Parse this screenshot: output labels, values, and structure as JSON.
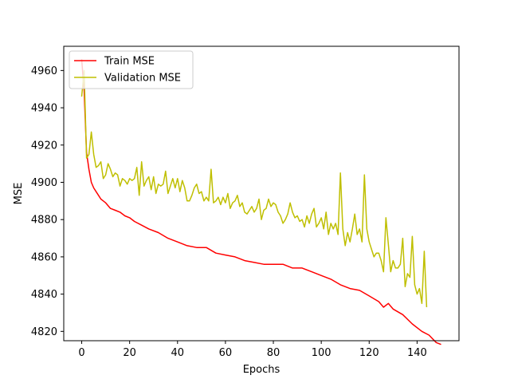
{
  "chart_data": {
    "type": "line",
    "title": "",
    "xlabel": "Epochs",
    "ylabel": "MSE",
    "xlim": [
      -7.5,
      157.5
    ],
    "ylim": [
      4815,
      4973
    ],
    "xticks": [
      0,
      20,
      40,
      60,
      80,
      100,
      120,
      140
    ],
    "yticks": [
      4820,
      4840,
      4860,
      4880,
      4900,
      4920,
      4940,
      4960
    ],
    "grid": false,
    "legend": "top-left",
    "series": [
      {
        "name": "Train MSE",
        "color": "#ff0000",
        "points": [
          [
            0,
            4966
          ],
          [
            1,
            4949
          ],
          [
            2,
            4916
          ],
          [
            3,
            4907
          ],
          [
            4,
            4900
          ],
          [
            5,
            4897
          ],
          [
            6,
            4895
          ],
          [
            7,
            4893
          ],
          [
            8,
            4891
          ],
          [
            9,
            4890
          ],
          [
            10,
            4889
          ],
          [
            12,
            4886
          ],
          [
            14,
            4885
          ],
          [
            16,
            4884
          ],
          [
            18,
            4882
          ],
          [
            20,
            4881
          ],
          [
            22,
            4879
          ],
          [
            25,
            4877
          ],
          [
            28,
            4875
          ],
          [
            32,
            4873
          ],
          [
            36,
            4870
          ],
          [
            40,
            4868
          ],
          [
            44,
            4866
          ],
          [
            48,
            4865
          ],
          [
            52,
            4865
          ],
          [
            56,
            4862
          ],
          [
            60,
            4861
          ],
          [
            64,
            4860
          ],
          [
            68,
            4858
          ],
          [
            72,
            4857
          ],
          [
            76,
            4856
          ],
          [
            80,
            4856
          ],
          [
            84,
            4856
          ],
          [
            86,
            4855
          ],
          [
            88,
            4854
          ],
          [
            92,
            4854
          ],
          [
            96,
            4852
          ],
          [
            100,
            4850
          ],
          [
            104,
            4848
          ],
          [
            108,
            4845
          ],
          [
            112,
            4843
          ],
          [
            116,
            4842
          ],
          [
            120,
            4839
          ],
          [
            124,
            4836
          ],
          [
            126,
            4833
          ],
          [
            128,
            4835
          ],
          [
            130,
            4832
          ],
          [
            134,
            4829
          ],
          [
            138,
            4824
          ],
          [
            142,
            4820
          ],
          [
            145,
            4818
          ],
          [
            148,
            4814
          ],
          [
            150,
            4813
          ]
        ]
      },
      {
        "name": "Validation MSE",
        "color": "#bfbf00",
        "points": [
          [
            0,
            4946
          ],
          [
            1,
            4960
          ],
          [
            2,
            4913
          ],
          [
            3,
            4915
          ],
          [
            4,
            4927
          ],
          [
            5,
            4915
          ],
          [
            6,
            4908
          ],
          [
            7,
            4909
          ],
          [
            8,
            4911
          ],
          [
            9,
            4902
          ],
          [
            10,
            4904
          ],
          [
            11,
            4910
          ],
          [
            12,
            4907
          ],
          [
            13,
            4903
          ],
          [
            14,
            4905
          ],
          [
            15,
            4904
          ],
          [
            16,
            4898
          ],
          [
            17,
            4902
          ],
          [
            18,
            4901
          ],
          [
            19,
            4899
          ],
          [
            20,
            4902
          ],
          [
            21,
            4901
          ],
          [
            22,
            4902
          ],
          [
            23,
            4908
          ],
          [
            24,
            4893
          ],
          [
            25,
            4911
          ],
          [
            26,
            4898
          ],
          [
            27,
            4901
          ],
          [
            28,
            4903
          ],
          [
            29,
            4896
          ],
          [
            30,
            4903
          ],
          [
            31,
            4894
          ],
          [
            32,
            4899
          ],
          [
            33,
            4898
          ],
          [
            34,
            4899
          ],
          [
            35,
            4906
          ],
          [
            36,
            4894
          ],
          [
            37,
            4898
          ],
          [
            38,
            4902
          ],
          [
            39,
            4897
          ],
          [
            40,
            4902
          ],
          [
            41,
            4895
          ],
          [
            42,
            4901
          ],
          [
            43,
            4897
          ],
          [
            44,
            4890
          ],
          [
            45,
            4890
          ],
          [
            46,
            4893
          ],
          [
            47,
            4897
          ],
          [
            48,
            4899
          ],
          [
            49,
            4894
          ],
          [
            50,
            4895
          ],
          [
            51,
            4890
          ],
          [
            52,
            4892
          ],
          [
            53,
            4890
          ],
          [
            54,
            4907
          ],
          [
            55,
            4889
          ],
          [
            56,
            4890
          ],
          [
            57,
            4892
          ],
          [
            58,
            4888
          ],
          [
            59,
            4892
          ],
          [
            60,
            4889
          ],
          [
            61,
            4894
          ],
          [
            62,
            4886
          ],
          [
            63,
            4889
          ],
          [
            64,
            4890
          ],
          [
            65,
            4893
          ],
          [
            66,
            4887
          ],
          [
            67,
            4889
          ],
          [
            68,
            4884
          ],
          [
            69,
            4883
          ],
          [
            70,
            4885
          ],
          [
            71,
            4887
          ],
          [
            72,
            4884
          ],
          [
            73,
            4886
          ],
          [
            74,
            4891
          ],
          [
            75,
            4880
          ],
          [
            76,
            4885
          ],
          [
            77,
            4886
          ],
          [
            78,
            4891
          ],
          [
            79,
            4887
          ],
          [
            80,
            4889
          ],
          [
            81,
            4888
          ],
          [
            82,
            4884
          ],
          [
            83,
            4882
          ],
          [
            84,
            4878
          ],
          [
            85,
            4880
          ],
          [
            86,
            4883
          ],
          [
            87,
            4889
          ],
          [
            88,
            4884
          ],
          [
            89,
            4881
          ],
          [
            90,
            4882
          ],
          [
            91,
            4879
          ],
          [
            92,
            4880
          ],
          [
            93,
            4876
          ],
          [
            94,
            4882
          ],
          [
            95,
            4878
          ],
          [
            96,
            4883
          ],
          [
            97,
            4886
          ],
          [
            98,
            4876
          ],
          [
            99,
            4878
          ],
          [
            100,
            4881
          ],
          [
            101,
            4875
          ],
          [
            102,
            4884
          ],
          [
            103,
            4872
          ],
          [
            104,
            4878
          ],
          [
            105,
            4875
          ],
          [
            106,
            4878
          ],
          [
            107,
            4872
          ],
          [
            108,
            4905
          ],
          [
            109,
            4875
          ],
          [
            110,
            4866
          ],
          [
            111,
            4873
          ],
          [
            112,
            4868
          ],
          [
            113,
            4875
          ],
          [
            114,
            4883
          ],
          [
            115,
            4872
          ],
          [
            116,
            4875
          ],
          [
            117,
            4868
          ],
          [
            118,
            4904
          ],
          [
            119,
            4875
          ],
          [
            120,
            4868
          ],
          [
            121,
            4864
          ],
          [
            122,
            4860
          ],
          [
            123,
            4862
          ],
          [
            124,
            4862
          ],
          [
            125,
            4858
          ],
          [
            126,
            4852
          ],
          [
            127,
            4881
          ],
          [
            128,
            4867
          ],
          [
            129,
            4852
          ],
          [
            130,
            4858
          ],
          [
            131,
            4854
          ],
          [
            132,
            4854
          ],
          [
            133,
            4856
          ],
          [
            134,
            4870
          ],
          [
            135,
            4844
          ],
          [
            136,
            4851
          ],
          [
            137,
            4849
          ],
          [
            138,
            4871
          ],
          [
            139,
            4845
          ],
          [
            140,
            4840
          ],
          [
            141,
            4843
          ],
          [
            142,
            4835
          ],
          [
            143,
            4863
          ],
          [
            144,
            4833
          ]
        ]
      }
    ]
  }
}
